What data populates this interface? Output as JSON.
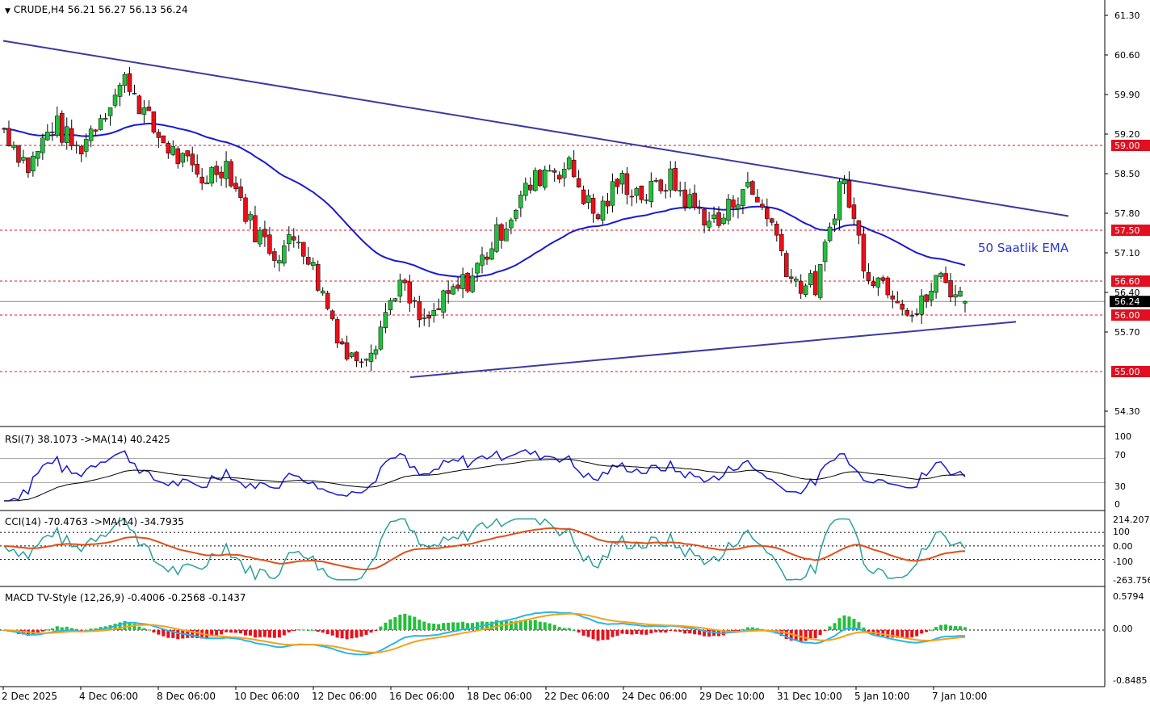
{
  "header": {
    "arrow": "▼",
    "symbol": "CRUDE,H4",
    "ohlc": "56.21 56.27 56.13 56.24"
  },
  "annotation": "50 Saatlik EMA",
  "colors": {
    "bull": "#22c03a",
    "bear": "#e8101a",
    "ema": "#1a1ad0",
    "trend": "#3a3aa0",
    "level": "#e01020",
    "rsi": "#1a1ad0",
    "cci": "#29a0a0",
    "cci_ma": "#e0501a",
    "macd": "#29b6e6",
    "signal": "#f5a21a"
  },
  "price_axis": {
    "ticks": [
      "61.30",
      "60.60",
      "59.90",
      "59.20",
      "58.50",
      "57.80",
      "57.10",
      "56.40",
      "55.70",
      "54.30"
    ],
    "current": "56.24"
  },
  "levels": [
    "59.00",
    "57.50",
    "56.60",
    "56.00",
    "55.00"
  ],
  "date_labels": [
    "2 Dec 2025",
    "4 Dec 06:00",
    "8 Dec 06:00",
    "10 Dec 06:00",
    "12 Dec 06:00",
    "16 Dec 06:00",
    "18 Dec 06:00",
    "22 Dec 06:00",
    "24 Dec 06:00",
    "29 Dec 10:00",
    "31 Dec 10:00",
    "5 Jan 10:00",
    "7 Jan 10:00"
  ],
  "rsi_panel": {
    "label": "RSI(7) 38.1073  ->MA(14) 40.2425",
    "ticks": [
      "100",
      "70",
      "30",
      "0"
    ]
  },
  "cci_panel": {
    "label": "CCI(14) -70.4763  ->MA(14) -34.7935",
    "ticks": [
      "214.207",
      "100",
      "0.00",
      "-100",
      "-263.756"
    ]
  },
  "macd_panel": {
    "label": "MACD TV-Style (12,26,9) -0.4006 -0.2568 -0.1437",
    "ticks": [
      "0.5794",
      "0.00",
      "-0.8485"
    ]
  },
  "chart_data": {
    "type": "candlestick",
    "symbol": "CRUDE",
    "timeframe": "H4",
    "ylim": [
      54.0,
      61.6
    ],
    "dates": [
      "2 Dec 2025",
      "4 Dec 06:00",
      "8 Dec 06:00",
      "10 Dec 06:00",
      "12 Dec 06:00",
      "16 Dec 06:00",
      "18 Dec 06:00",
      "22 Dec 06:00",
      "24 Dec 06:00",
      "29 Dec 10:00",
      "31 Dec 10:00",
      "5 Jan 10:00",
      "7 Jan 10:00"
    ],
    "close_path": [
      59.3,
      58.6,
      59.4,
      58.9,
      59.6,
      60.2,
      59.3,
      58.8,
      58.4,
      58.7,
      57.6,
      57.1,
      57.4,
      56.3,
      55.2,
      55.5,
      56.6,
      55.8,
      56.3,
      56.7,
      57.4,
      58.1,
      58.6,
      58.6,
      57.7,
      58.4,
      58.1,
      58.4,
      57.9,
      57.6,
      58.3,
      57.8,
      56.6,
      56.5,
      58.5,
      56.8,
      56.5,
      56.0,
      56.7,
      56.2
    ],
    "levels": [
      59.0,
      57.5,
      56.6,
      56.0,
      55.0
    ],
    "current_price": 56.24,
    "last_ohlc": {
      "open": 56.21,
      "high": 56.27,
      "low": 56.13,
      "close": 56.24
    },
    "indicators": {
      "ema": "50 Saatlik EMA",
      "rsi": {
        "period": 7,
        "value": 38.1073,
        "ma_period": 14,
        "ma_value": 40.2425,
        "levels": [
          70,
          30
        ]
      },
      "cci": {
        "period": 14,
        "value": -70.4763,
        "ma_period": 14,
        "ma_value": -34.7935,
        "levels": [
          100,
          0,
          -100
        ],
        "range": [
          -263.756,
          214.207
        ]
      },
      "macd": {
        "fast": 12,
        "slow": 26,
        "signal": 9,
        "values": [
          -0.4006,
          -0.2568,
          -0.1437
        ],
        "range": [
          -0.8485,
          0.5794
        ]
      }
    }
  }
}
